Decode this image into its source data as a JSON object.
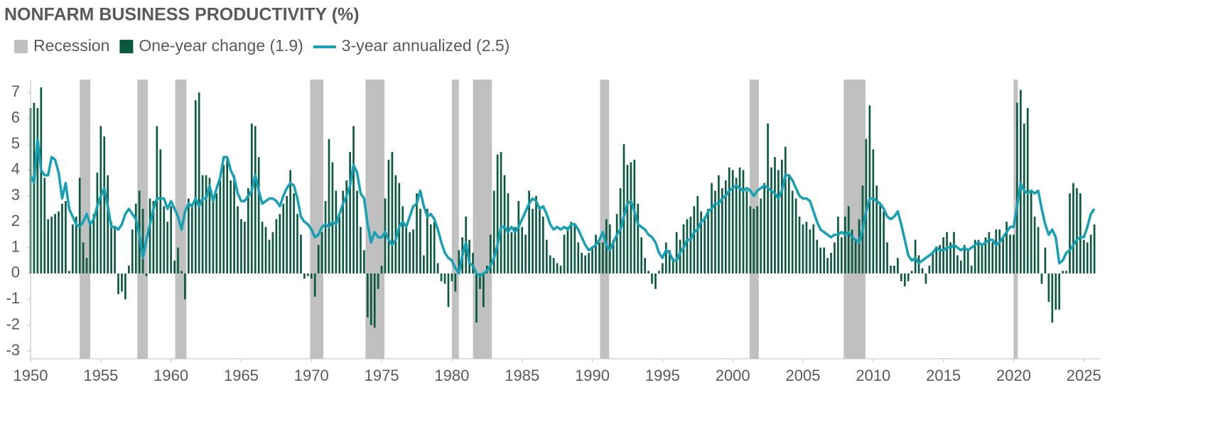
{
  "chart_data": {
    "type": "bar-line",
    "title": "NONFARM BUSINESS PRODUCTIVITY (%)",
    "recession_label": "Recession",
    "recession_color": "#c0c0c0",
    "recessions": [
      [
        1953.5,
        1954.25
      ],
      [
        1957.6,
        1958.35
      ],
      [
        1960.3,
        1961.1
      ],
      [
        1969.9,
        1970.85
      ],
      [
        1973.85,
        1975.2
      ],
      [
        1980.0,
        1980.5
      ],
      [
        1981.5,
        1982.85
      ],
      [
        1990.55,
        1991.2
      ],
      [
        2001.2,
        2001.85
      ],
      [
        2007.9,
        2009.45
      ],
      [
        2020.0,
        2020.3
      ]
    ],
    "x": [
      1950,
      1950.25,
      1950.5,
      1950.75,
      1951,
      1951.25,
      1951.5,
      1951.75,
      1952,
      1952.25,
      1952.5,
      1952.75,
      1953,
      1953.25,
      1953.5,
      1953.75,
      1954,
      1954.25,
      1954.5,
      1954.75,
      1955,
      1955.25,
      1955.5,
      1955.75,
      1956,
      1956.25,
      1956.5,
      1956.75,
      1957,
      1957.25,
      1957.5,
      1957.75,
      1958,
      1958.25,
      1958.5,
      1958.75,
      1959,
      1959.25,
      1959.5,
      1959.75,
      1960,
      1960.25,
      1960.5,
      1960.75,
      1961,
      1961.25,
      1961.5,
      1961.75,
      1962,
      1962.25,
      1962.5,
      1962.75,
      1963,
      1963.25,
      1963.5,
      1963.75,
      1964,
      1964.25,
      1964.5,
      1964.75,
      1965,
      1965.25,
      1965.5,
      1965.75,
      1966,
      1966.25,
      1966.5,
      1966.75,
      1967,
      1967.25,
      1967.5,
      1967.75,
      1968,
      1968.25,
      1968.5,
      1968.75,
      1969,
      1969.25,
      1969.5,
      1969.75,
      1970,
      1970.25,
      1970.5,
      1970.75,
      1971,
      1971.25,
      1971.5,
      1971.75,
      1972,
      1972.25,
      1972.5,
      1972.75,
      1973,
      1973.25,
      1973.5,
      1973.75,
      1974,
      1974.25,
      1974.5,
      1974.75,
      1975,
      1975.25,
      1975.5,
      1975.75,
      1976,
      1976.25,
      1976.5,
      1976.75,
      1977,
      1977.25,
      1977.5,
      1977.75,
      1978,
      1978.25,
      1978.5,
      1978.75,
      1979,
      1979.25,
      1979.5,
      1979.75,
      1980,
      1980.25,
      1980.5,
      1980.75,
      1981,
      1981.25,
      1981.5,
      1981.75,
      1982,
      1982.25,
      1982.5,
      1982.75,
      1983,
      1983.25,
      1983.5,
      1983.75,
      1984,
      1984.25,
      1984.5,
      1984.75,
      1985,
      1985.25,
      1985.5,
      1985.75,
      1986,
      1986.25,
      1986.5,
      1986.75,
      1987,
      1987.25,
      1987.5,
      1987.75,
      1988,
      1988.25,
      1988.5,
      1988.75,
      1989,
      1989.25,
      1989.5,
      1989.75,
      1990,
      1990.25,
      1990.5,
      1990.75,
      1991,
      1991.25,
      1991.5,
      1991.75,
      1992,
      1992.25,
      1992.5,
      1992.75,
      1993,
      1993.25,
      1993.5,
      1993.75,
      1994,
      1994.25,
      1994.5,
      1994.75,
      1995,
      1995.25,
      1995.5,
      1995.75,
      1996,
      1996.25,
      1996.5,
      1996.75,
      1997,
      1997.25,
      1997.5,
      1997.75,
      1998,
      1998.25,
      1998.5,
      1998.75,
      1999,
      1999.25,
      1999.5,
      1999.75,
      2000,
      2000.25,
      2000.5,
      2000.75,
      2001,
      2001.25,
      2001.5,
      2001.75,
      2002,
      2002.25,
      2002.5,
      2002.75,
      2003,
      2003.25,
      2003.5,
      2003.75,
      2004,
      2004.25,
      2004.5,
      2004.75,
      2005,
      2005.25,
      2005.5,
      2005.75,
      2006,
      2006.25,
      2006.5,
      2006.75,
      2007,
      2007.25,
      2007.5,
      2007.75,
      2008,
      2008.25,
      2008.5,
      2008.75,
      2009,
      2009.25,
      2009.5,
      2009.75,
      2010,
      2010.25,
      2010.5,
      2010.75,
      2011,
      2011.25,
      2011.5,
      2011.75,
      2012,
      2012.25,
      2012.5,
      2012.75,
      2013,
      2013.25,
      2013.5,
      2013.75,
      2014,
      2014.25,
      2014.5,
      2014.75,
      2015,
      2015.25,
      2015.5,
      2015.75,
      2016,
      2016.25,
      2016.5,
      2016.75,
      2017,
      2017.25,
      2017.5,
      2017.75,
      2018,
      2018.25,
      2018.5,
      2018.75,
      2019,
      2019.25,
      2019.5,
      2019.75,
      2020,
      2020.25,
      2020.5,
      2020.75,
      2021,
      2021.25,
      2021.5,
      2021.75,
      2022,
      2022.25,
      2022.5,
      2022.75,
      2023,
      2023.25,
      2023.5,
      2023.75,
      2024,
      2024.25,
      2024.5,
      2024.75,
      2025,
      2025.25,
      2025.5,
      2025.75
    ],
    "series": [
      {
        "name": "One-year change (1.9)",
        "type": "bar",
        "color": "#0b5a3f",
        "values": [
          6.4,
          6.6,
          6.4,
          7.2,
          3.7,
          2.1,
          2.2,
          2.3,
          2.4,
          2.7,
          2.8,
          0.1,
          1.9,
          2.2,
          3.7,
          1.2,
          0.6,
          2.0,
          2.3,
          3.9,
          5.7,
          5.3,
          3.8,
          2.0,
          1.8,
          -0.8,
          -0.7,
          -1.0,
          0.3,
          1.7,
          2.7,
          3.2,
          2.5,
          -0.1,
          2.9,
          2.8,
          5.7,
          4.8,
          2.6,
          2.0,
          2.6,
          0.5,
          1.0,
          0.1,
          -1.0,
          2.9,
          2.7,
          6.7,
          7.0,
          3.8,
          3.8,
          3.7,
          3.0,
          3.1,
          3.6,
          4.2,
          4.5,
          3.6,
          3.8,
          2.6,
          2.1,
          2.0,
          3.3,
          5.8,
          5.7,
          4.5,
          2.0,
          1.8,
          1.3,
          1.6,
          2.1,
          2.3,
          2.7,
          3.0,
          4.0,
          3.1,
          2.3,
          1.5,
          -0.2,
          -0.1,
          -0.2,
          -0.9,
          1.1,
          1.6,
          2.8,
          5.2,
          4.3,
          3.2,
          2.2,
          3.2,
          3.6,
          4.7,
          5.7,
          3.2,
          1.8,
          0.9,
          -1.7,
          -2.0,
          -2.1,
          -0.6,
          0.3,
          2.9,
          4.4,
          4.7,
          3.8,
          3.5,
          2.6,
          1.8,
          1.6,
          1.7,
          3.1,
          2.5,
          0.7,
          2.5,
          1.9,
          2.0,
          0.4,
          -0.3,
          -0.4,
          -1.3,
          -0.3,
          -0.7,
          0.9,
          1.4,
          2.2,
          1.3,
          0.8,
          -1.9,
          -0.6,
          -1.3,
          0.3,
          1.5,
          3.2,
          4.6,
          4.7,
          3.8,
          3.1,
          1.6,
          1.8,
          2.8,
          1.8,
          1.5,
          3.2,
          2.5,
          3.0,
          2.5,
          2.2,
          1.3,
          0.7,
          0.6,
          0.4,
          0.3,
          1.5,
          1.8,
          2.0,
          1.9,
          1.2,
          0.8,
          0.7,
          0.8,
          1.0,
          1.5,
          1.2,
          1.2,
          2.1,
          1.9,
          1.3,
          2.3,
          3.3,
          5.0,
          4.2,
          4.3,
          4.4,
          2.7,
          1.4,
          0.6,
          0.1,
          -0.4,
          -0.6,
          0.1,
          0.4,
          1.2,
          0.9,
          0.6,
          1.6,
          1.3,
          1.9,
          2.1,
          2.2,
          2.6,
          3.0,
          2.4,
          2.2,
          2.5,
          3.5,
          3.2,
          3.8,
          3.3,
          3.6,
          4.1,
          4.0,
          3.7,
          4.1,
          4.0,
          3.2,
          2.6,
          2.5,
          2.6,
          2.9,
          3.5,
          5.8,
          4.1,
          4.5,
          4.0,
          4.4,
          4.9,
          3.8,
          3.2,
          2.9,
          2.2,
          1.9,
          2.0,
          1.7,
          1.9,
          1.3,
          1.0,
          1.0,
          0.6,
          0.8,
          1.2,
          2.2,
          1.4,
          2.2,
          2.6,
          1.7,
          1.3,
          2.1,
          3.4,
          5.2,
          6.5,
          4.8,
          3.4,
          2.7,
          2.4,
          1.2,
          0.3,
          0.3,
          0.6,
          -0.3,
          -0.5,
          -0.3,
          0.1,
          1.3,
          0.7,
          0.2,
          -0.4,
          0.3,
          0.8,
          1.0,
          1.1,
          1.4,
          1.6,
          1.2,
          1.6,
          0.7,
          0.5,
          1.1,
          0.9,
          0.3,
          1.3,
          1.3,
          1.1,
          1.4,
          1.6,
          1.2,
          1.7,
          1.7,
          1.4,
          2.0,
          1.5,
          1.5,
          6.6,
          7.1,
          5.8,
          6.4,
          3.2,
          2.2,
          1.8,
          -0.4,
          1.0,
          -1.1,
          -1.9,
          -1.4,
          -1.4,
          0.1,
          0.1,
          3.1,
          3.5,
          3.3,
          3.1,
          1.3,
          1.2,
          1.5,
          1.9
        ]
      },
      {
        "name": "3-year annualized (2.5)",
        "type": "line",
        "color": "#17a0b3",
        "values": [
          3.8,
          3.5,
          5.2,
          4.0,
          3.8,
          3.8,
          4.5,
          4.4,
          3.9,
          2.9,
          3.5,
          2.5,
          2.2,
          1.9,
          1.8,
          2.0,
          2.3,
          1.9,
          2.1,
          2.6,
          3.0,
          3.3,
          2.6,
          1.8,
          1.8,
          1.7,
          1.9,
          2.3,
          2.5,
          2.3,
          2.1,
          1.5,
          0.6,
          1.3,
          1.9,
          2.5,
          2.9,
          2.9,
          2.9,
          2.5,
          2.8,
          2.5,
          2.2,
          1.7,
          2.4,
          2.7,
          2.6,
          2.9,
          2.6,
          2.9,
          2.9,
          3.4,
          2.8,
          3.3,
          3.7,
          4.5,
          4.5,
          4.0,
          3.7,
          3.1,
          2.8,
          2.8,
          3.0,
          3.2,
          3.8,
          3.2,
          2.7,
          2.8,
          2.9,
          2.9,
          2.8,
          2.6,
          3.0,
          3.3,
          3.5,
          3.4,
          2.9,
          2.2,
          2.0,
          1.9,
          1.7,
          1.4,
          1.5,
          1.8,
          1.9,
          1.8,
          2.0,
          1.9,
          2.3,
          2.7,
          3.0,
          3.4,
          4.2,
          3.9,
          3.1,
          2.9,
          1.9,
          1.2,
          1.6,
          1.4,
          1.4,
          1.6,
          1.3,
          1.1,
          1.3,
          1.8,
          2.0,
          1.8,
          2.2,
          2.6,
          2.7,
          3.2,
          2.6,
          2.2,
          2.3,
          2.1,
          1.7,
          1.2,
          0.8,
          0.6,
          0.5,
          0.2,
          0.0,
          0.7,
          1.2,
          0.4,
          0.3,
          0.0,
          -0.1,
          0.0,
          0.1,
          0.3,
          0.6,
          1.1,
          1.8,
          1.8,
          1.6,
          1.8,
          1.6,
          1.8,
          2.1,
          2.4,
          2.7,
          2.9,
          2.8,
          2.5,
          2.6,
          2.3,
          1.9,
          1.7,
          1.8,
          1.7,
          1.8,
          1.7,
          1.9,
          1.9,
          1.7,
          1.4,
          1.1,
          0.9,
          1.0,
          1.1,
          1.3,
          1.6,
          1.1,
          0.9,
          1.2,
          1.5,
          1.7,
          2.2,
          2.7,
          2.8,
          2.4,
          1.9,
          1.8,
          1.7,
          1.5,
          1.4,
          1.2,
          0.8,
          0.6,
          0.9,
          0.8,
          0.5,
          0.5,
          0.8,
          1.0,
          1.3,
          1.3,
          1.6,
          1.7,
          2.0,
          2.1,
          2.4,
          2.5,
          2.7,
          2.7,
          2.9,
          3.0,
          3.2,
          3.3,
          3.4,
          3.3,
          3.2,
          3.3,
          3.2,
          3.0,
          3.2,
          3.3,
          3.4,
          3.3,
          3.2,
          3.1,
          2.9,
          3.2,
          3.8,
          3.8,
          3.6,
          3.3,
          3.0,
          2.9,
          2.9,
          2.8,
          2.4,
          2.0,
          1.7,
          1.6,
          1.5,
          1.4,
          1.5,
          1.5,
          1.6,
          1.5,
          1.6,
          1.4,
          1.3,
          1.2,
          1.7,
          2.4,
          2.9,
          2.9,
          2.8,
          2.7,
          2.5,
          2.2,
          2.1,
          2.2,
          2.4,
          1.9,
          1.3,
          0.7,
          0.5,
          0.6,
          0.4,
          0.5,
          0.6,
          0.7,
          0.8,
          1.0,
          0.9,
          0.9,
          1.0,
          1.0,
          1.1,
          1.0,
          0.9,
          1.0,
          0.9,
          1.0,
          1.1,
          1.2,
          1.1,
          1.2,
          1.3,
          1.3,
          1.1,
          1.2,
          1.4,
          1.6,
          1.8,
          1.8,
          2.6,
          3.5,
          3.2,
          3.1,
          3.2,
          3.1,
          3.2,
          2.5,
          1.9,
          1.5,
          1.7,
          1.4,
          0.4,
          0.5,
          0.8,
          0.9,
          1.1,
          1.3,
          1.4,
          1.4,
          1.8,
          2.3,
          2.5
        ]
      }
    ],
    "xlim": [
      1950,
      2026.2
    ],
    "ylim": [
      -3.3,
      7.5
    ],
    "xticks": [
      1950,
      1955,
      1960,
      1965,
      1970,
      1975,
      1980,
      1985,
      1990,
      1995,
      2000,
      2005,
      2010,
      2015,
      2020,
      2025
    ],
    "yticks": [
      -3,
      -2,
      -1,
      0,
      1,
      2,
      3,
      4,
      5,
      6,
      7
    ]
  }
}
